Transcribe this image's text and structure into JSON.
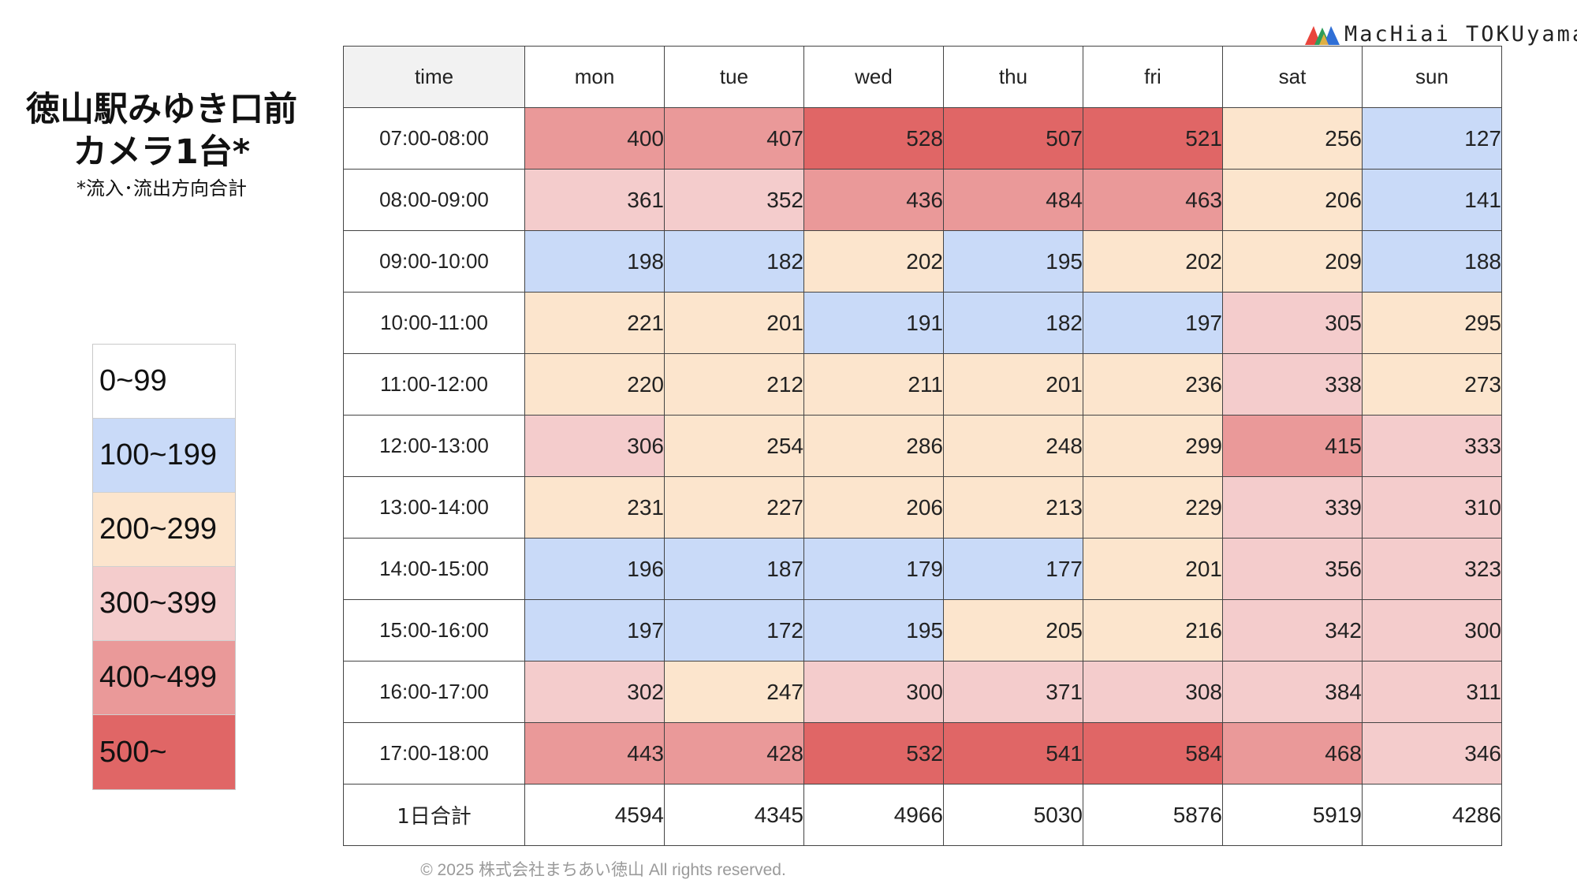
{
  "title": {
    "line1": "徳山駅みゆき口前",
    "line2": "カメラ1台*",
    "note": "*流入･流出方向合計"
  },
  "logo": {
    "text": "MacHiai TOKUyama"
  },
  "legend": [
    {
      "label": "0~99",
      "color": "#ffffff"
    },
    {
      "label": "100~199",
      "color": "#c9daf8"
    },
    {
      "label": "200~299",
      "color": "#fce5cd"
    },
    {
      "label": "300~399",
      "color": "#f4cccc"
    },
    {
      "label": "400~499",
      "color": "#ea9999"
    },
    {
      "label": "500~",
      "color": "#e06666"
    }
  ],
  "chart_data": {
    "type": "heatmap",
    "corner_label": "time",
    "columns": [
      "mon",
      "tue",
      "wed",
      "thu",
      "fri",
      "sat",
      "sun"
    ],
    "rows": [
      {
        "time": "07:00-08:00",
        "values": [
          400,
          407,
          528,
          507,
          521,
          256,
          127
        ]
      },
      {
        "time": "08:00-09:00",
        "values": [
          361,
          352,
          436,
          484,
          463,
          206,
          141
        ]
      },
      {
        "time": "09:00-10:00",
        "values": [
          198,
          182,
          202,
          195,
          202,
          209,
          188
        ]
      },
      {
        "time": "10:00-11:00",
        "values": [
          221,
          201,
          191,
          182,
          197,
          305,
          295
        ]
      },
      {
        "time": "11:00-12:00",
        "values": [
          220,
          212,
          211,
          201,
          236,
          338,
          273
        ]
      },
      {
        "time": "12:00-13:00",
        "values": [
          306,
          254,
          286,
          248,
          299,
          415,
          333
        ]
      },
      {
        "time": "13:00-14:00",
        "values": [
          231,
          227,
          206,
          213,
          229,
          339,
          310
        ]
      },
      {
        "time": "14:00-15:00",
        "values": [
          196,
          187,
          179,
          177,
          201,
          356,
          323
        ]
      },
      {
        "time": "15:00-16:00",
        "values": [
          197,
          172,
          195,
          205,
          216,
          342,
          300
        ]
      },
      {
        "time": "16:00-17:00",
        "values": [
          302,
          247,
          300,
          371,
          308,
          384,
          311
        ]
      },
      {
        "time": "17:00-18:00",
        "values": [
          443,
          428,
          532,
          541,
          584,
          468,
          346
        ]
      }
    ],
    "totals": {
      "label": "1日合計",
      "values": [
        4594,
        4345,
        4966,
        5030,
        5876,
        5919,
        4286
      ]
    }
  },
  "footer": {
    "copyright": "© 2025 株式会社まちあい徳山 All rights reserved."
  }
}
